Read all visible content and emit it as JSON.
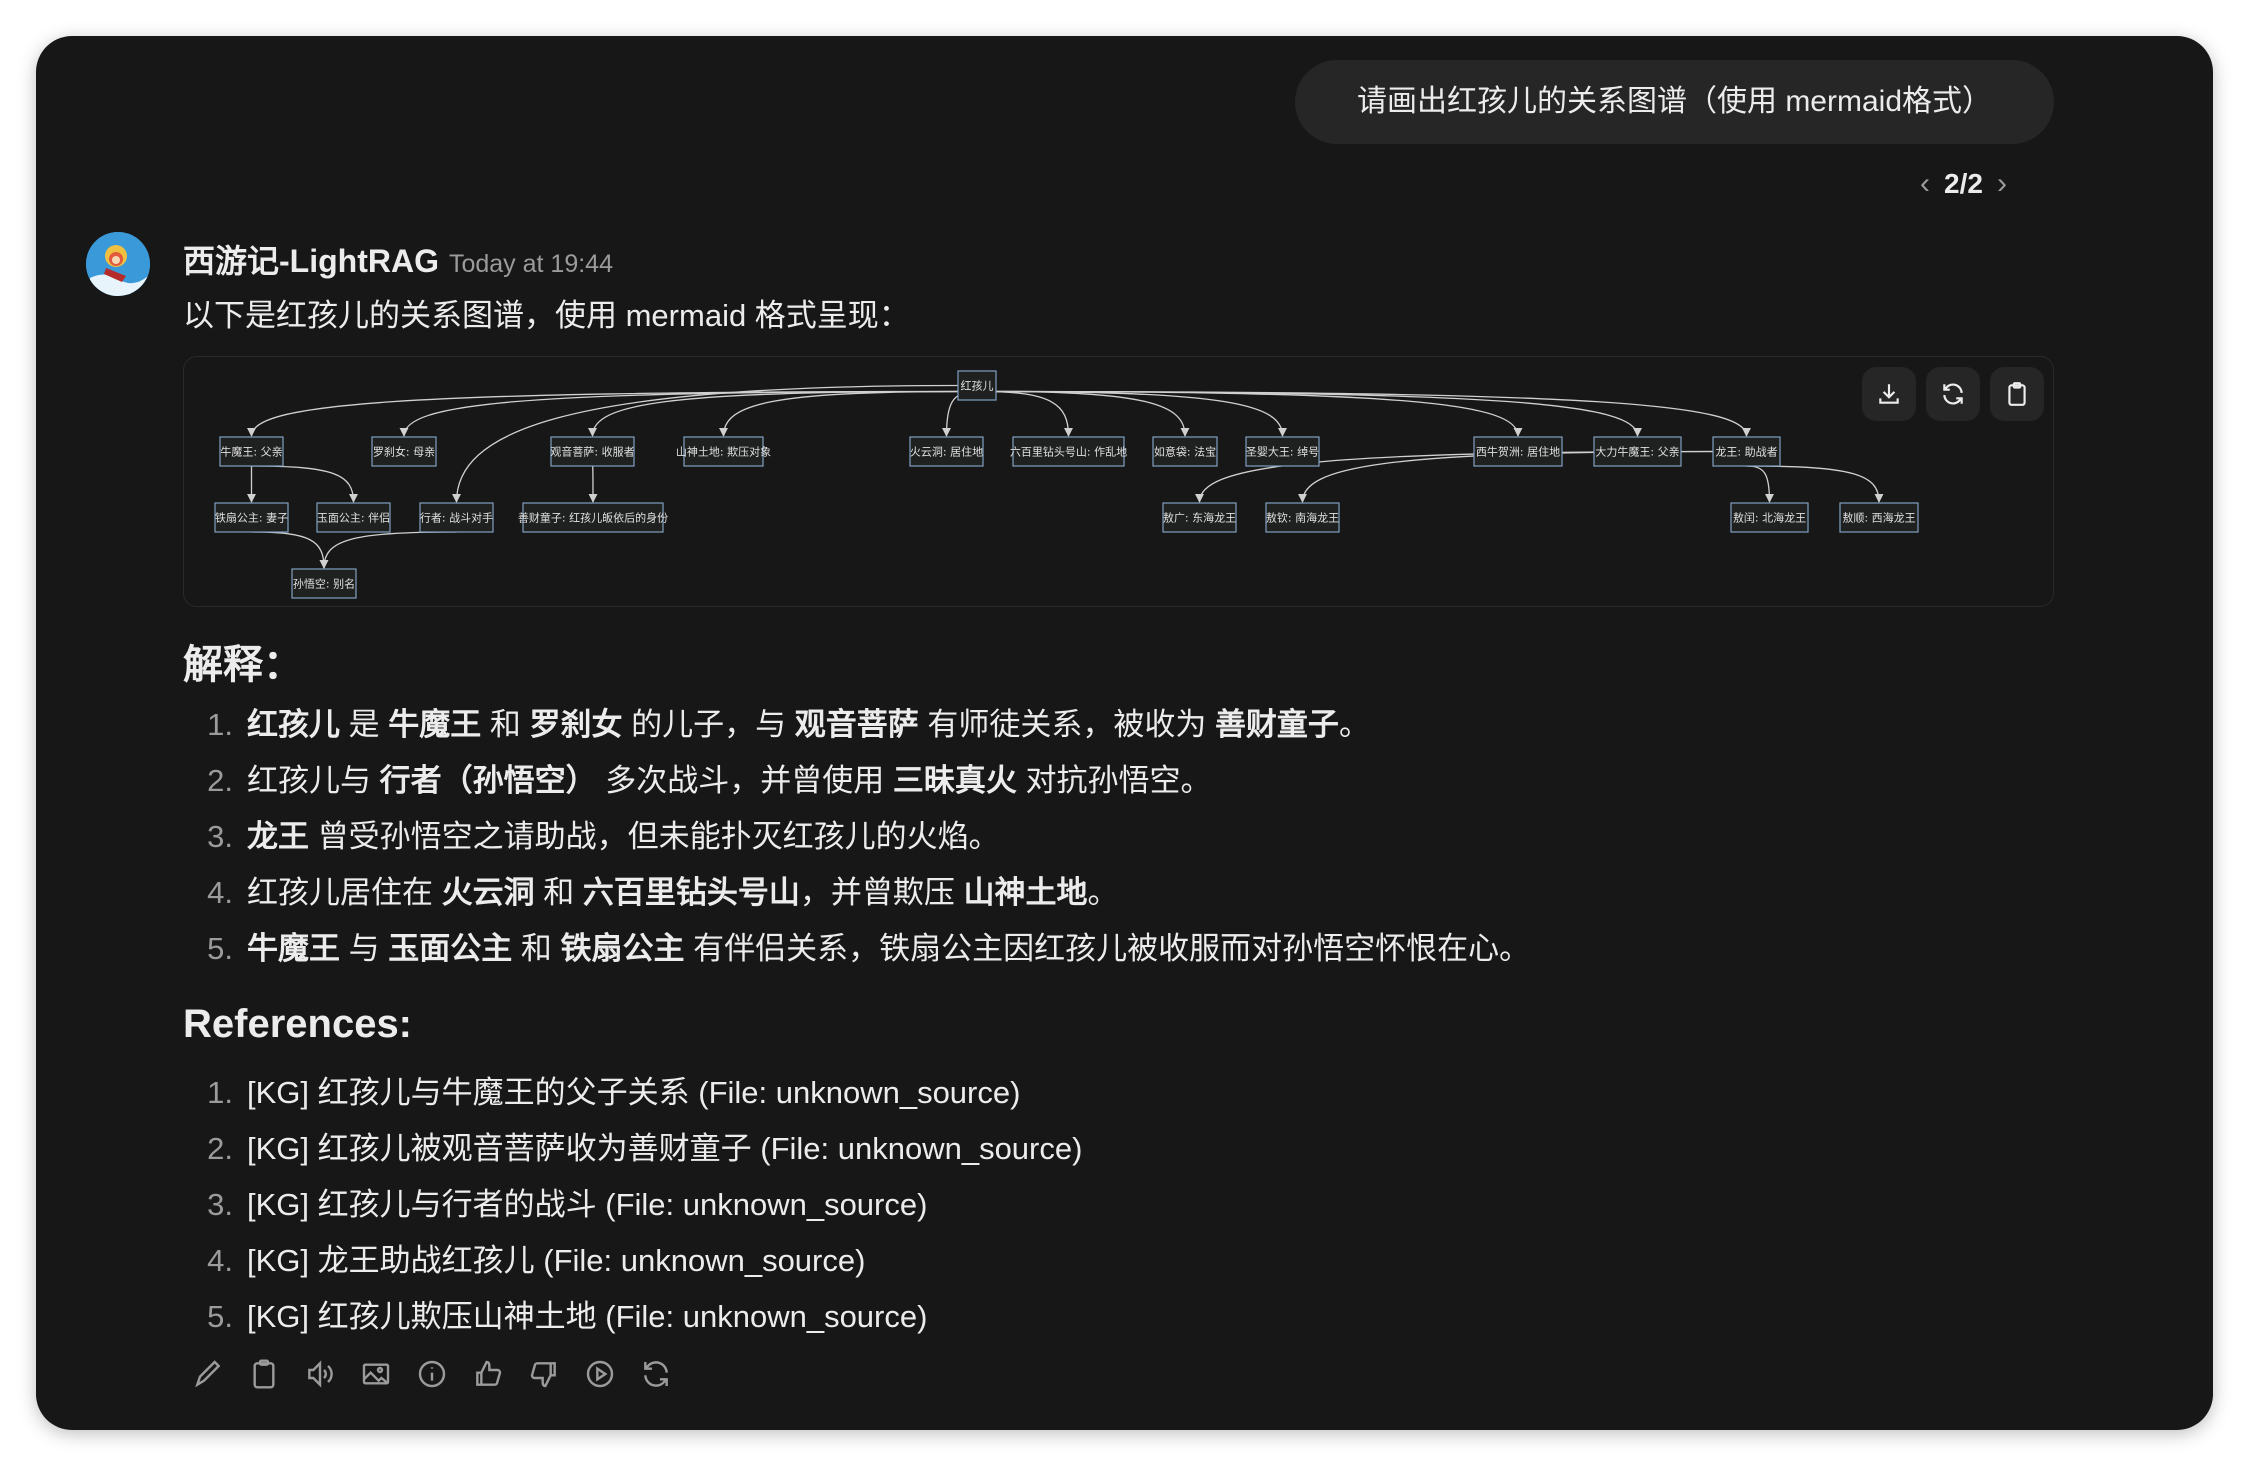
{
  "user_message": "请画出红孩儿的关系图谱（使用 mermaid格式）",
  "pager": {
    "current": "2/2",
    "prev_icon": "chevron-left-icon",
    "next_icon": "chevron-right-icon"
  },
  "assistant": {
    "name": "西游记-LightRAG",
    "timestamp": "Today at 19:44",
    "intro": "以下是红孩儿的关系图谱，使用 mermaid 格式呈现："
  },
  "diagram": {
    "nodes": [
      "红孩儿",
      "牛魔王: 父亲",
      "罗刹女: 母亲",
      "观音菩萨: 收服者",
      "山神土地: 欺压对象",
      "火云洞: 居住地",
      "六百里钻头号山: 作乱地",
      "如意袋: 法宝",
      "圣婴大王: 绰号",
      "西牛贺洲: 居住地",
      "大力牛魔王: 父亲",
      "龙王: 助战者",
      "铁扇公主: 妻子",
      "玉面公主: 伴侣",
      "行者: 战斗对手",
      "善财童子: 红孩儿皈依后的身份",
      "敖广: 东海龙王",
      "敖钦: 南海龙王",
      "敖闰: 北海龙王",
      "敖顺: 西海龙王",
      "孙悟空: 别名"
    ],
    "edges": [
      [
        0,
        1
      ],
      [
        0,
        2
      ],
      [
        0,
        14
      ],
      [
        0,
        3
      ],
      [
        0,
        4
      ],
      [
        0,
        5
      ],
      [
        0,
        6
      ],
      [
        0,
        7
      ],
      [
        0,
        8
      ],
      [
        0,
        9
      ],
      [
        0,
        10
      ],
      [
        0,
        11
      ],
      [
        1,
        12
      ],
      [
        1,
        13
      ],
      [
        3,
        15
      ],
      [
        12,
        20
      ],
      [
        14,
        20
      ],
      [
        11,
        16
      ],
      [
        11,
        17
      ],
      [
        11,
        18
      ],
      [
        11,
        19
      ]
    ],
    "buttons": {
      "download": "download-icon",
      "reload": "refresh-icon",
      "copy": "clipboard-icon"
    },
    "node_fill": "#1f2020",
    "node_stroke": "#81a1c1",
    "edge_color": "#d0d0d0"
  },
  "explanation": {
    "heading": "解释：",
    "items": [
      [
        {
          "t": "红孩儿",
          "b": true
        },
        {
          "t": " 是 "
        },
        {
          "t": "牛魔王",
          "b": true
        },
        {
          "t": " 和 "
        },
        {
          "t": "罗刹女",
          "b": true
        },
        {
          "t": " 的儿子，与 "
        },
        {
          "t": "观音菩萨",
          "b": true
        },
        {
          "t": " 有师徒关系，被收为 "
        },
        {
          "t": "善财童子",
          "b": true
        },
        {
          "t": "。"
        }
      ],
      [
        {
          "t": "红孩儿与 "
        },
        {
          "t": "行者（孙悟空）",
          "b": true
        },
        {
          "t": " 多次战斗，并曾使用 "
        },
        {
          "t": "三昧真火",
          "b": true
        },
        {
          "t": " 对抗孙悟空。"
        }
      ],
      [
        {
          "t": "龙王",
          "b": true
        },
        {
          "t": " 曾受孙悟空之请助战，但未能扑灭红孩儿的火焰。"
        }
      ],
      [
        {
          "t": "红孩儿居住在 "
        },
        {
          "t": "火云洞",
          "b": true
        },
        {
          "t": " 和 "
        },
        {
          "t": "六百里钻头号山",
          "b": true
        },
        {
          "t": "，并曾欺压 "
        },
        {
          "t": "山神土地",
          "b": true
        },
        {
          "t": "。"
        }
      ],
      [
        {
          "t": "牛魔王",
          "b": true
        },
        {
          "t": " 与 "
        },
        {
          "t": "玉面公主",
          "b": true
        },
        {
          "t": " 和 "
        },
        {
          "t": "铁扇公主",
          "b": true
        },
        {
          "t": " 有伴侣关系，铁扇公主因红孩儿被收服而对孙悟空怀恨在心。"
        }
      ]
    ]
  },
  "references": {
    "heading": "References:",
    "items": [
      "[KG] 红孩儿与牛魔王的父子关系 (File: unknown_source)",
      "[KG] 红孩儿被观音菩萨收为善财童子 (File: unknown_source)",
      "[KG] 红孩儿与行者的战斗 (File: unknown_source)",
      "[KG] 龙王助战红孩儿 (File: unknown_source)",
      "[KG] 红孩儿欺压山神土地 (File: unknown_source)"
    ]
  },
  "actions": [
    "edit-icon",
    "copy-icon",
    "read-aloud-icon",
    "image-icon",
    "info-icon",
    "thumbs-up-icon",
    "thumbs-down-icon",
    "play-icon",
    "regenerate-icon"
  ],
  "colors": {
    "background": "#171717",
    "bubble": "#262626",
    "text": "#ececec",
    "muted": "#9b9b9b"
  }
}
